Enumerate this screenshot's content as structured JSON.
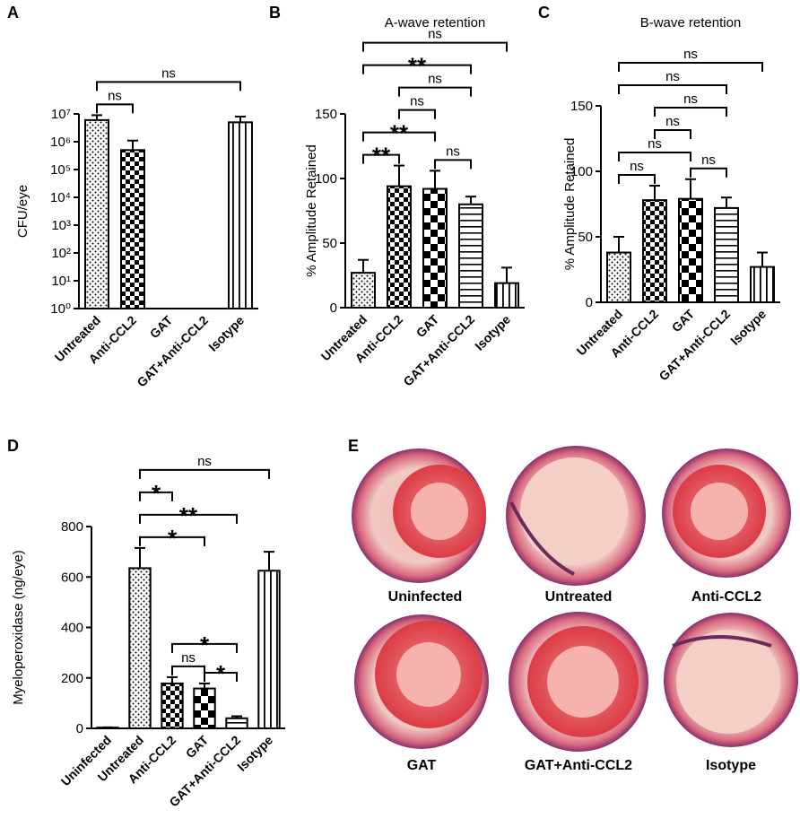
{
  "chart_data": [
    {
      "type": "bar",
      "panel": "A",
      "ylabel": "CFU/eye",
      "log_scale": true,
      "categories": [
        "Untreated",
        "Anti-CCL2",
        "GAT",
        "GAT+Anti-CCL2",
        "Isotype"
      ],
      "values": [
        6000000,
        500000,
        null,
        null,
        5000000
      ],
      "errors": [
        3000000,
        600000,
        null,
        null,
        3000000
      ],
      "patterns": [
        "dots",
        "checker-small",
        "checker-large",
        "hlines",
        "vlines"
      ],
      "ylim": [
        1,
        10000000
      ],
      "yticks": [
        {
          "value": 1,
          "label": "10⁰"
        },
        {
          "value": 10,
          "label": "10¹"
        },
        {
          "value": 100,
          "label": "10²"
        },
        {
          "value": 1000,
          "label": "10³"
        },
        {
          "value": 10000,
          "label": "10⁴"
        },
        {
          "value": 100000,
          "label": "10⁵"
        },
        {
          "value": 1000000,
          "label": "10⁶"
        },
        {
          "value": 10000000,
          "label": "10⁷"
        }
      ],
      "comparisons": [
        {
          "between": [
            "Untreated",
            "Anti-CCL2"
          ],
          "label": "ns"
        },
        {
          "between": [
            "Untreated",
            "Isotype"
          ],
          "label": "ns"
        }
      ]
    },
    {
      "type": "bar",
      "panel": "B",
      "title": "A-wave retention",
      "ylabel": "% Amplitude Retained",
      "categories": [
        "Untreated",
        "Anti-CCL2",
        "GAT",
        "GAT+Anti-CCL2",
        "Isotype"
      ],
      "values": [
        27,
        94,
        92,
        80,
        19
      ],
      "errors": [
        10,
        16,
        14,
        6,
        12
      ],
      "patterns": [
        "dots",
        "checker-small",
        "checker-large",
        "hlines",
        "vlines"
      ],
      "ylim": [
        0,
        150
      ],
      "yticks": [
        0,
        50,
        100,
        150
      ],
      "comparisons": [
        {
          "between": [
            "Untreated",
            "Anti-CCL2"
          ],
          "label": "**"
        },
        {
          "between": [
            "Untreated",
            "GAT"
          ],
          "label": "**"
        },
        {
          "between": [
            "GAT",
            "GAT+Anti-CCL2"
          ],
          "label": "ns"
        },
        {
          "between": [
            "Anti-CCL2",
            "GAT"
          ],
          "label": "ns"
        },
        {
          "between": [
            "Anti-CCL2",
            "GAT+Anti-CCL2"
          ],
          "label": "ns"
        },
        {
          "between": [
            "Untreated",
            "GAT+Anti-CCL2"
          ],
          "label": "**"
        },
        {
          "between": [
            "Untreated",
            "Isotype"
          ],
          "label": "ns"
        }
      ]
    },
    {
      "type": "bar",
      "panel": "C",
      "title": "B-wave retention",
      "ylabel": "% Amplitude Retained",
      "categories": [
        "Untreated",
        "Anti-CCL2",
        "GAT",
        "GAT+Anti-CCL2",
        "Isotype"
      ],
      "values": [
        38,
        78,
        79,
        72,
        27
      ],
      "errors": [
        12,
        11,
        15,
        8,
        11
      ],
      "patterns": [
        "dots",
        "checker-small",
        "checker-large",
        "hlines",
        "vlines"
      ],
      "ylim": [
        0,
        150
      ],
      "yticks": [
        0,
        50,
        100,
        150
      ],
      "comparisons": [
        {
          "between": [
            "Untreated",
            "Anti-CCL2"
          ],
          "label": "ns"
        },
        {
          "between": [
            "Untreated",
            "GAT"
          ],
          "label": "ns"
        },
        {
          "between": [
            "GAT",
            "GAT+Anti-CCL2"
          ],
          "label": "ns"
        },
        {
          "between": [
            "Anti-CCL2",
            "GAT"
          ],
          "label": "ns"
        },
        {
          "between": [
            "Anti-CCL2",
            "GAT+Anti-CCL2"
          ],
          "label": "ns"
        },
        {
          "between": [
            "Untreated",
            "GAT+Anti-CCL2"
          ],
          "label": "ns"
        },
        {
          "between": [
            "Untreated",
            "Isotype"
          ],
          "label": "ns"
        }
      ]
    },
    {
      "type": "bar",
      "panel": "D",
      "ylabel": "Myeloperoxidase (ng/eye)",
      "categories": [
        "Uninfected",
        "Untreated",
        "Anti-CCL2",
        "GAT",
        "GAT+Anti-CCL2",
        "Isotype"
      ],
      "values": [
        3,
        635,
        178,
        158,
        40,
        625
      ],
      "errors": [
        1,
        80,
        25,
        20,
        8,
        75
      ],
      "patterns": [
        "open",
        "dots",
        "checker-small",
        "checker-large",
        "hlines",
        "vlines"
      ],
      "ylim": [
        0,
        800
      ],
      "yticks": [
        0,
        200,
        400,
        600,
        800
      ],
      "comparisons": [
        {
          "between": [
            "Anti-CCL2",
            "GAT"
          ],
          "label": "ns"
        },
        {
          "between": [
            "GAT",
            "GAT+Anti-CCL2"
          ],
          "label": "*"
        },
        {
          "between": [
            "Anti-CCL2",
            "GAT+Anti-CCL2"
          ],
          "label": "*"
        },
        {
          "between": [
            "Untreated",
            "GAT"
          ],
          "label": "*"
        },
        {
          "between": [
            "Untreated",
            "GAT+Anti-CCL2"
          ],
          "label": "**"
        },
        {
          "between": [
            "Untreated",
            "Anti-CCL2"
          ],
          "label": "*"
        },
        {
          "between": [
            "Untreated",
            "Isotype"
          ],
          "label": "ns"
        }
      ]
    }
  ],
  "panel_e": {
    "panel": "E",
    "labels": [
      "Uninfected",
      "Untreated",
      "Anti-CCL2",
      "GAT",
      "GAT+Anti-CCL2",
      "Isotype"
    ]
  }
}
